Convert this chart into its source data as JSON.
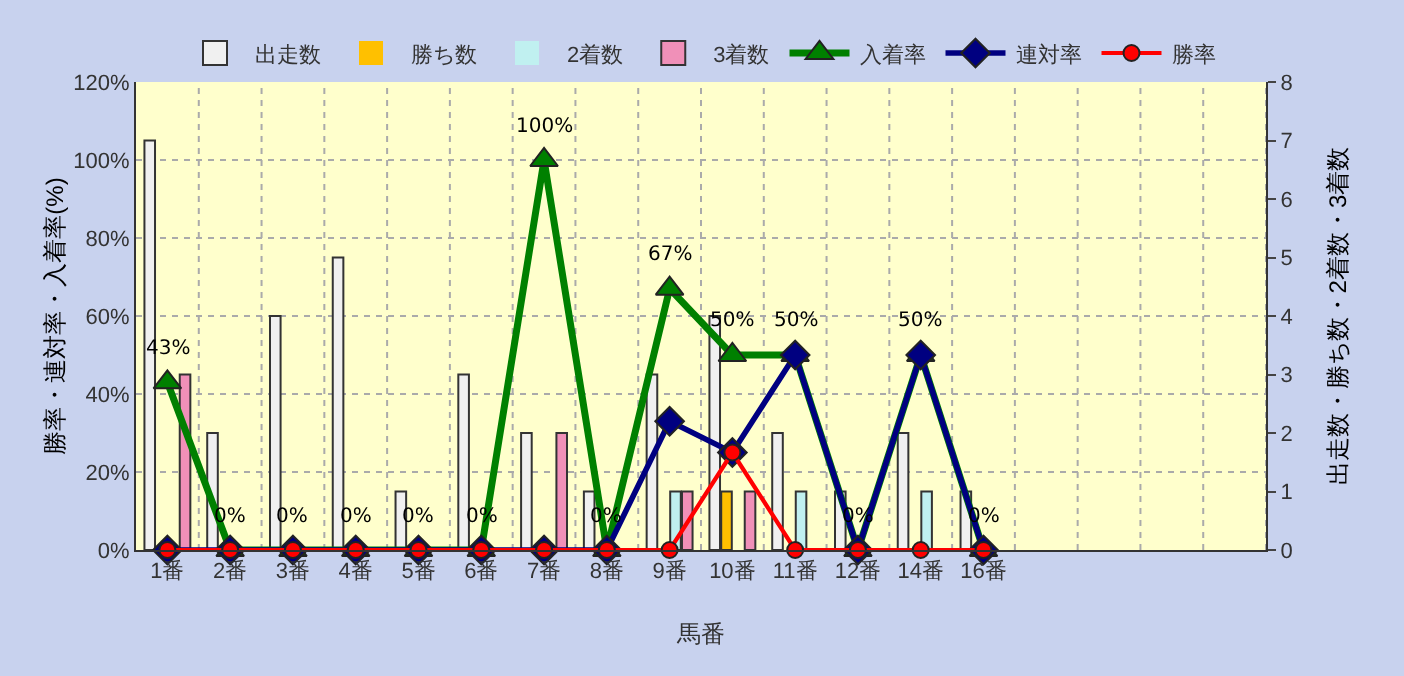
{
  "chart_data": {
    "type": "bar",
    "xlabel": "馬番",
    "ylabel": "勝率・連対率・入着率(%)",
    "y2label": "出走数・勝ち数・2着数・3着数",
    "categories": [
      "1番",
      "2番",
      "3番",
      "4番",
      "5番",
      "6番",
      "7番",
      "8番",
      "9番",
      "10番",
      "11番",
      "12番",
      "14番",
      "16番",
      null,
      null,
      null,
      null
    ],
    "series": [
      {
        "name": "出走数",
        "axis": "y2",
        "color": "#f0f0f0",
        "values": [
          7,
          2,
          4,
          5,
          1,
          3,
          2,
          1,
          3,
          4,
          2,
          1,
          2,
          1,
          null,
          null,
          null,
          null
        ]
      },
      {
        "name": "勝ち数",
        "axis": "y2",
        "color": "#ffc000",
        "values": [
          0,
          0,
          0,
          0,
          0,
          0,
          0,
          0,
          0,
          1,
          0,
          0,
          0,
          0,
          null,
          null,
          null,
          null
        ]
      },
      {
        "name": "2着数",
        "axis": "y2",
        "color": "#c0f0f0",
        "values": [
          0,
          0,
          0,
          0,
          0,
          0,
          0,
          0,
          1,
          0,
          1,
          0,
          1,
          0,
          null,
          null,
          null,
          null
        ]
      },
      {
        "name": "3着数",
        "axis": "y2",
        "color": "#f090b8",
        "values": [
          3,
          0,
          0,
          0,
          0,
          0,
          2,
          0,
          1,
          1,
          0,
          0,
          0,
          0,
          null,
          null,
          null,
          null
        ]
      },
      {
        "name": "入着率",
        "type": "line",
        "marker": "triangle",
        "color": "#008000",
        "values": [
          43,
          0,
          0,
          0,
          0,
          0,
          100,
          0,
          67,
          50,
          50,
          0,
          50,
          0,
          null,
          null,
          null,
          null
        ],
        "value_labels": [
          "43%",
          "0%",
          "0%",
          "0%",
          "0%",
          "0%",
          "100%",
          "0%",
          "67%",
          "50%",
          "50%",
          "0%",
          "50%",
          "0%",
          null,
          null,
          null,
          null
        ]
      },
      {
        "name": "連対率",
        "type": "line",
        "marker": "diamond",
        "color": "#000080",
        "values": [
          0,
          0,
          0,
          0,
          0,
          0,
          0,
          0,
          33,
          25,
          50,
          0,
          50,
          0,
          null,
          null,
          null,
          null
        ]
      },
      {
        "name": "勝率",
        "type": "line",
        "marker": "circle",
        "color": "#ff0000",
        "values": [
          0,
          0,
          0,
          0,
          0,
          0,
          0,
          0,
          0,
          25,
          0,
          0,
          0,
          0,
          null,
          null,
          null,
          null
        ]
      }
    ],
    "ylim": [
      0,
      120
    ],
    "yticks": [
      {
        "value": 0,
        "label": "0%"
      },
      {
        "value": 20,
        "label": "20%"
      },
      {
        "value": 40,
        "label": "40%"
      },
      {
        "value": 60,
        "label": "60%"
      },
      {
        "value": 80,
        "label": "80%"
      },
      {
        "value": 100,
        "label": "100%"
      },
      {
        "value": 120,
        "label": "120%"
      }
    ],
    "y2lim": [
      0,
      8
    ],
    "y2ticks": [
      0,
      1,
      2,
      3,
      4,
      5,
      6,
      7,
      8
    ],
    "grid": true,
    "legend": "top"
  }
}
